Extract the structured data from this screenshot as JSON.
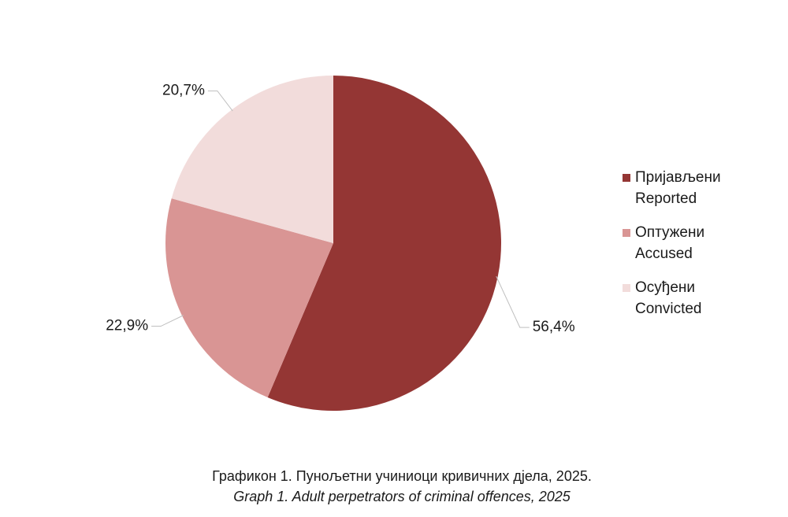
{
  "chart_data": {
    "type": "pie",
    "title": "Графикон 1. Пунољетни учиниоци кривичних дјела, 2025.",
    "subtitle": "Graph 1. Adult perpetrators of criminal offences, 2025",
    "categories": [
      "Пријављени",
      "Оптужени",
      "Осуђени"
    ],
    "categories_en": [
      "Reported",
      "Accused",
      "Convicted"
    ],
    "values": [
      56.4,
      22.9,
      20.7
    ],
    "value_labels": [
      "56,4%",
      "22,9%",
      "20,7%"
    ],
    "colors": [
      "#943634",
      "#d99594",
      "#f2dcdb"
    ],
    "legend": "right"
  }
}
